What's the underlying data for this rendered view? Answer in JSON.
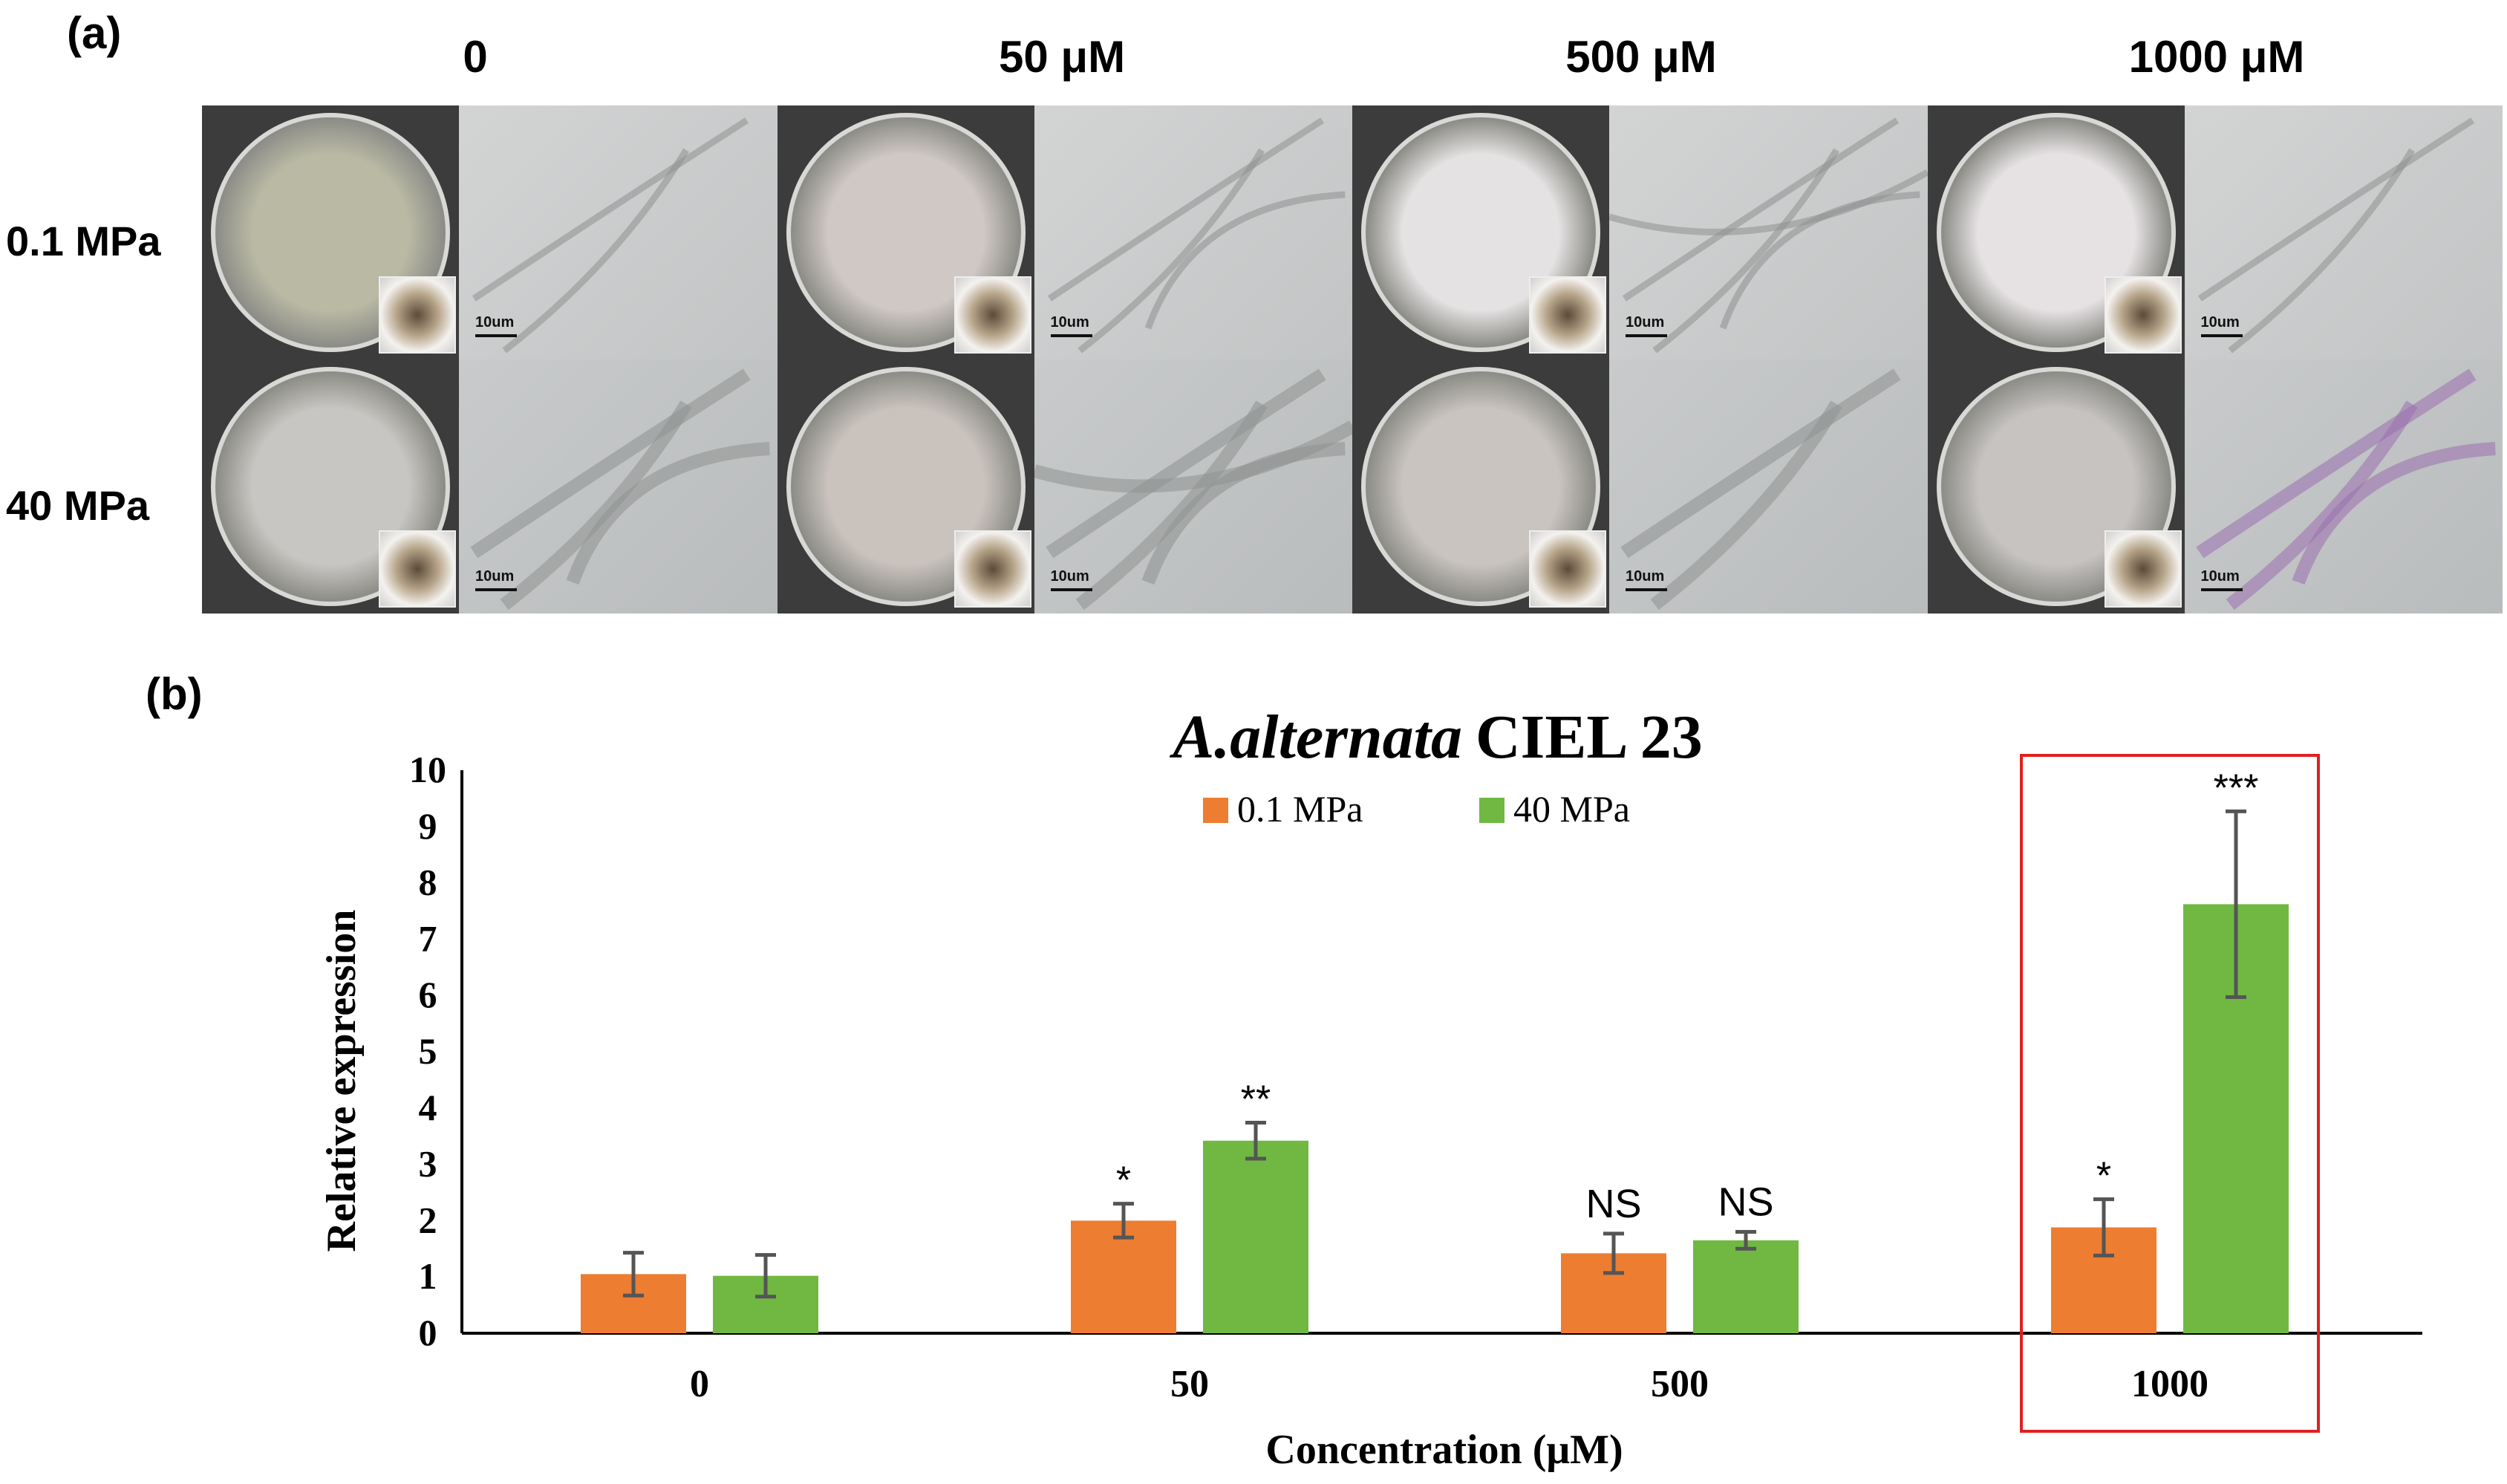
{
  "panel_a": {
    "label": "(a)",
    "columns": [
      "0",
      "50 μM",
      "500 μM",
      "1000 μM"
    ],
    "rows": [
      "0.1 MPa",
      "40 MPa"
    ],
    "scale_label": "10um"
  },
  "chart_data": {
    "panel_label": "(b)",
    "type": "bar",
    "title": "A.alternata CIEL 23",
    "title_italic": "A.alternata",
    "title_rest": "CIEL 23",
    "xlabel": "Concentration (μM)",
    "ylabel": "Relative expression",
    "categories": [
      "0",
      "50",
      "500",
      "1000"
    ],
    "ylim": [
      0,
      10
    ],
    "yticks": [
      0,
      1,
      2,
      3,
      4,
      5,
      6,
      7,
      8,
      9,
      10
    ],
    "legend_position": "top-center",
    "series": [
      {
        "name": "0.1 MPa",
        "color": "#ED7D31",
        "values": [
          1.05,
          2.0,
          1.42,
          1.88
        ],
        "errors": [
          0.38,
          0.3,
          0.35,
          0.5
        ],
        "annotations": [
          "",
          "*",
          "NS",
          "*"
        ]
      },
      {
        "name": "40 MPa",
        "color": "#70B842",
        "values": [
          1.02,
          3.42,
          1.65,
          7.62
        ],
        "errors": [
          0.37,
          0.32,
          0.15,
          1.65
        ],
        "annotations": [
          "",
          "**",
          "NS",
          "***"
        ]
      }
    ],
    "highlight": {
      "category": "1000",
      "color": "#E02020"
    }
  }
}
